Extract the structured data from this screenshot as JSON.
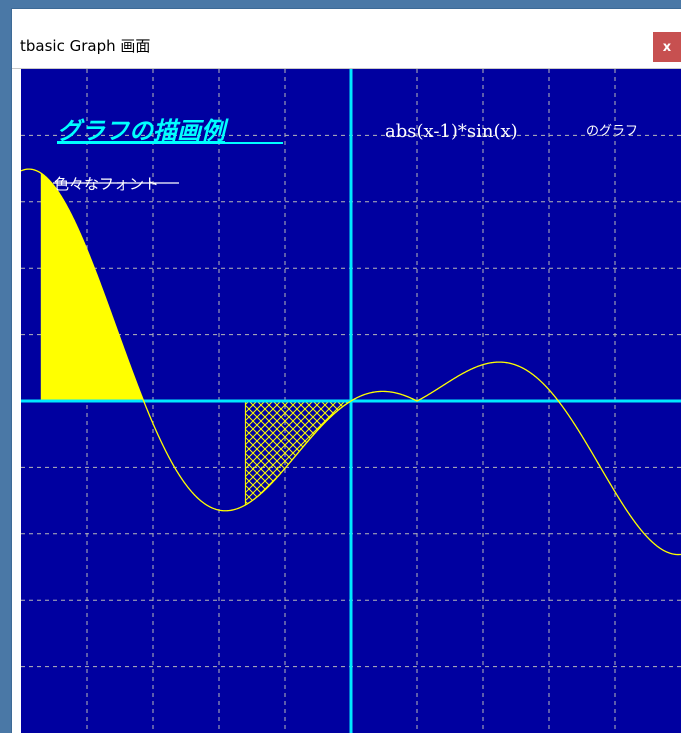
{
  "window": {
    "title": "tbasic Graph 画面",
    "close_label": "x"
  },
  "graph": {
    "heading": "グラフの描画例",
    "formula": "abs(x-1)*sin(x)",
    "formula_suffix": "のグラフ",
    "font_sample": "色々なフォント"
  },
  "colors": {
    "background": "#0000a0",
    "grid": "#b8b8b8",
    "axis": "#00e8ff",
    "curve": "#ffff00",
    "heading": "#00ffff",
    "text": "#ffffff",
    "close_button": "#c75050"
  },
  "chart_data": {
    "type": "line",
    "title": "",
    "function": "abs(x-1)*sin(x)",
    "xlim": [
      -5,
      5
    ],
    "grid": true,
    "fills": [
      {
        "from_x": -4.7,
        "to_x": -3.1416,
        "style": "solid"
      },
      {
        "from_x": -1.6,
        "to_x": 0,
        "style": "crosshatch"
      }
    ]
  }
}
